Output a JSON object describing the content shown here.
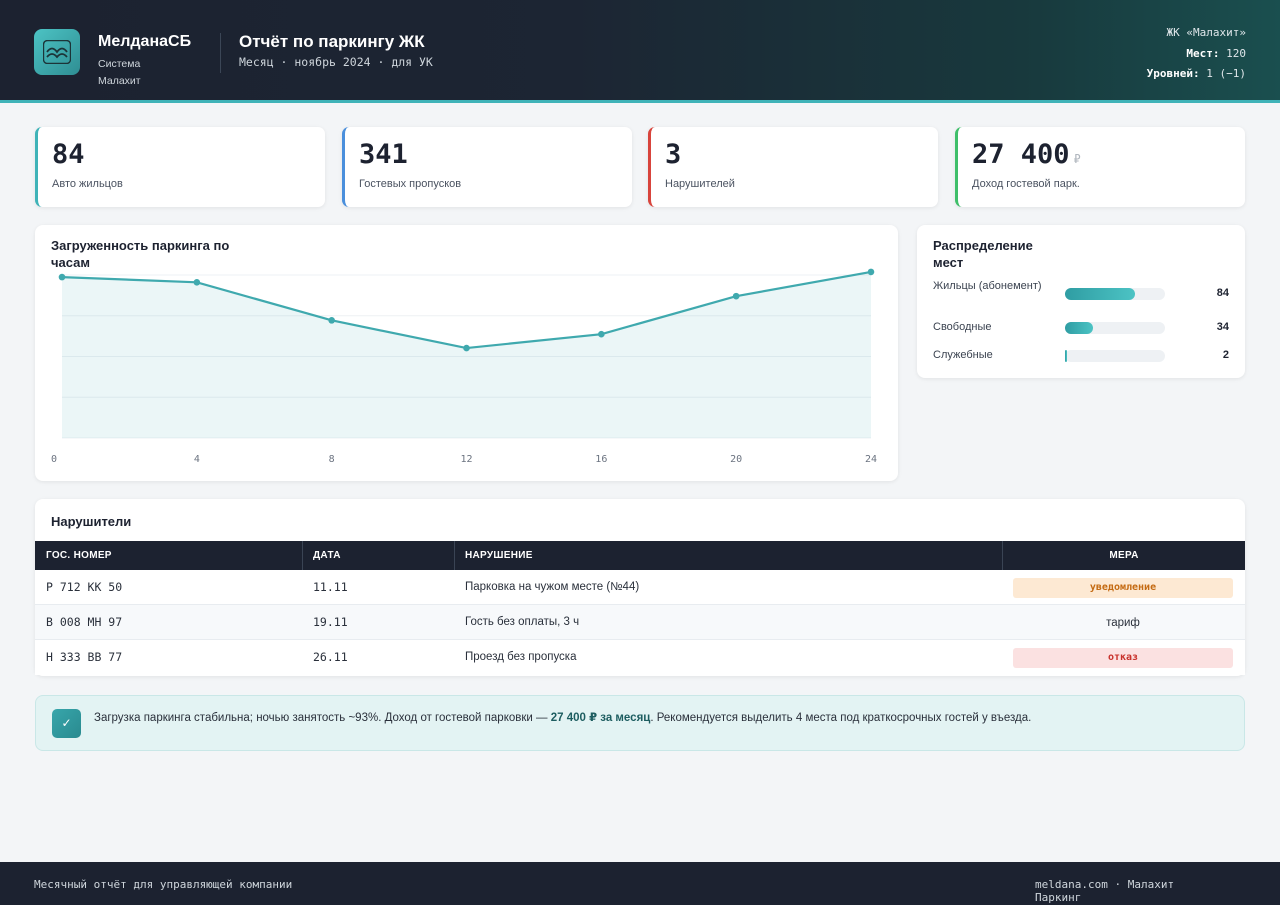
{
  "header": {
    "brand": "МелданаСБ",
    "brand_sub": "Система Малахит",
    "title": "Отчёт по паркингу ЖК",
    "subtitle": "Месяц · ноябрь 2024 · для УК",
    "meta": {
      "complex": "ЖК «Малахит»",
      "spots_label": "Мест:",
      "spots_value": "120",
      "levels_label": "Уровней:",
      "levels_value": "1 (−1)"
    }
  },
  "kpis": [
    {
      "value": "84",
      "label": "Авто жильцов",
      "accent": "#3fb3b8"
    },
    {
      "value": "341",
      "label": "Гостевых пропусков",
      "accent": "#4a8fdc"
    },
    {
      "value": "3",
      "label": "Нарушителей",
      "accent": "#d8443c"
    },
    {
      "value": "27 400",
      "currency": "₽",
      "label": "Доход гостевой парк.",
      "accent": "#3fbf6a"
    }
  ],
  "chart_data": {
    "type": "area",
    "title": "Загруженность паркинга по часам",
    "x": [
      0,
      4,
      8,
      12,
      16,
      20,
      24
    ],
    "values": [
      93,
      90,
      68,
      52,
      60,
      82,
      96
    ],
    "ylim": [
      0,
      100
    ],
    "xlabel": "",
    "ylabel": "",
    "grid": true,
    "color": "#3fa9ae"
  },
  "distribution": {
    "title": "Распределение мест",
    "items": [
      {
        "label": "Жильцы (абонемент)",
        "value": 84,
        "fraction": 0.7
      },
      {
        "label": "Свободные",
        "value": 34,
        "fraction": 0.28
      },
      {
        "label": "Служебные",
        "value": 2,
        "fraction": 0.02
      }
    ]
  },
  "violators": {
    "title": "Нарушители",
    "columns": [
      "ГОС. НОМЕР",
      "ДАТА",
      "НАРУШЕНИЕ",
      "МЕРА"
    ],
    "rows": [
      {
        "plate": "Р 712 КК 50",
        "date": "11.11",
        "violation": "Парковка на чужом месте (№44)",
        "measure": "уведомление",
        "measure_style": "warn"
      },
      {
        "plate": "В 008 МН 97",
        "date": "19.11",
        "violation": "Гость без оплаты, 3 ч",
        "measure": "тариф",
        "measure_style": "plain"
      },
      {
        "plate": "Н 333 ВВ 77",
        "date": "26.11",
        "violation": "Проезд без пропуска",
        "measure": "отказ",
        "measure_style": "danger"
      }
    ]
  },
  "conclusion": {
    "icon": "check-icon",
    "text_before": "Загрузка паркинга стабильна; ночью занятость ~93%. Доход от гостевой парковки — ",
    "text_bold": "27 400 ₽ за месяц",
    "text_after": ". Рекомендуется выделить 4 места под краткосрочных гостей у въезда."
  },
  "footer": {
    "left": "Месячный отчёт для управляющей компании",
    "right": "meldana.com · Малахит Паркинг"
  }
}
